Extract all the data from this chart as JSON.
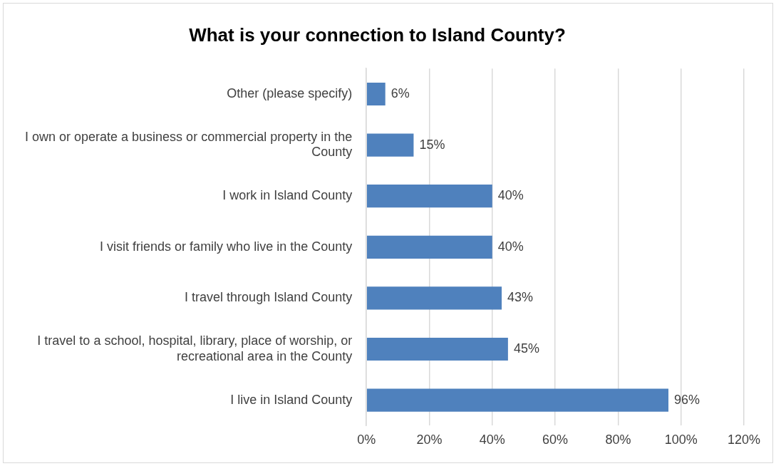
{
  "chart_data": {
    "type": "bar",
    "orientation": "horizontal",
    "title": "What is your connection to Island County?",
    "categories": [
      "Other (please specify)",
      "I own or operate a business or commercial property in the County",
      "I work in Island County",
      "I visit friends or family who live in the County",
      "I travel through Island County",
      "I travel to a school, hospital, library, place of worship, or recreational area in the County",
      "I live in Island County"
    ],
    "values": [
      6,
      15,
      40,
      40,
      43,
      45,
      96
    ],
    "value_labels": [
      "6%",
      "15%",
      "40%",
      "40%",
      "43%",
      "45%",
      "96%"
    ],
    "color": "#4f81bd",
    "xlim": [
      0,
      120
    ],
    "xticks": [
      {
        "value": 0,
        "label": "0%"
      },
      {
        "value": 20,
        "label": "20%"
      },
      {
        "value": 40,
        "label": "40%"
      },
      {
        "value": 60,
        "label": "60%"
      },
      {
        "value": 80,
        "label": "80%"
      },
      {
        "value": 100,
        "label": "100%"
      },
      {
        "value": 120,
        "label": "120%"
      }
    ],
    "grid": "x",
    "legend": false
  }
}
